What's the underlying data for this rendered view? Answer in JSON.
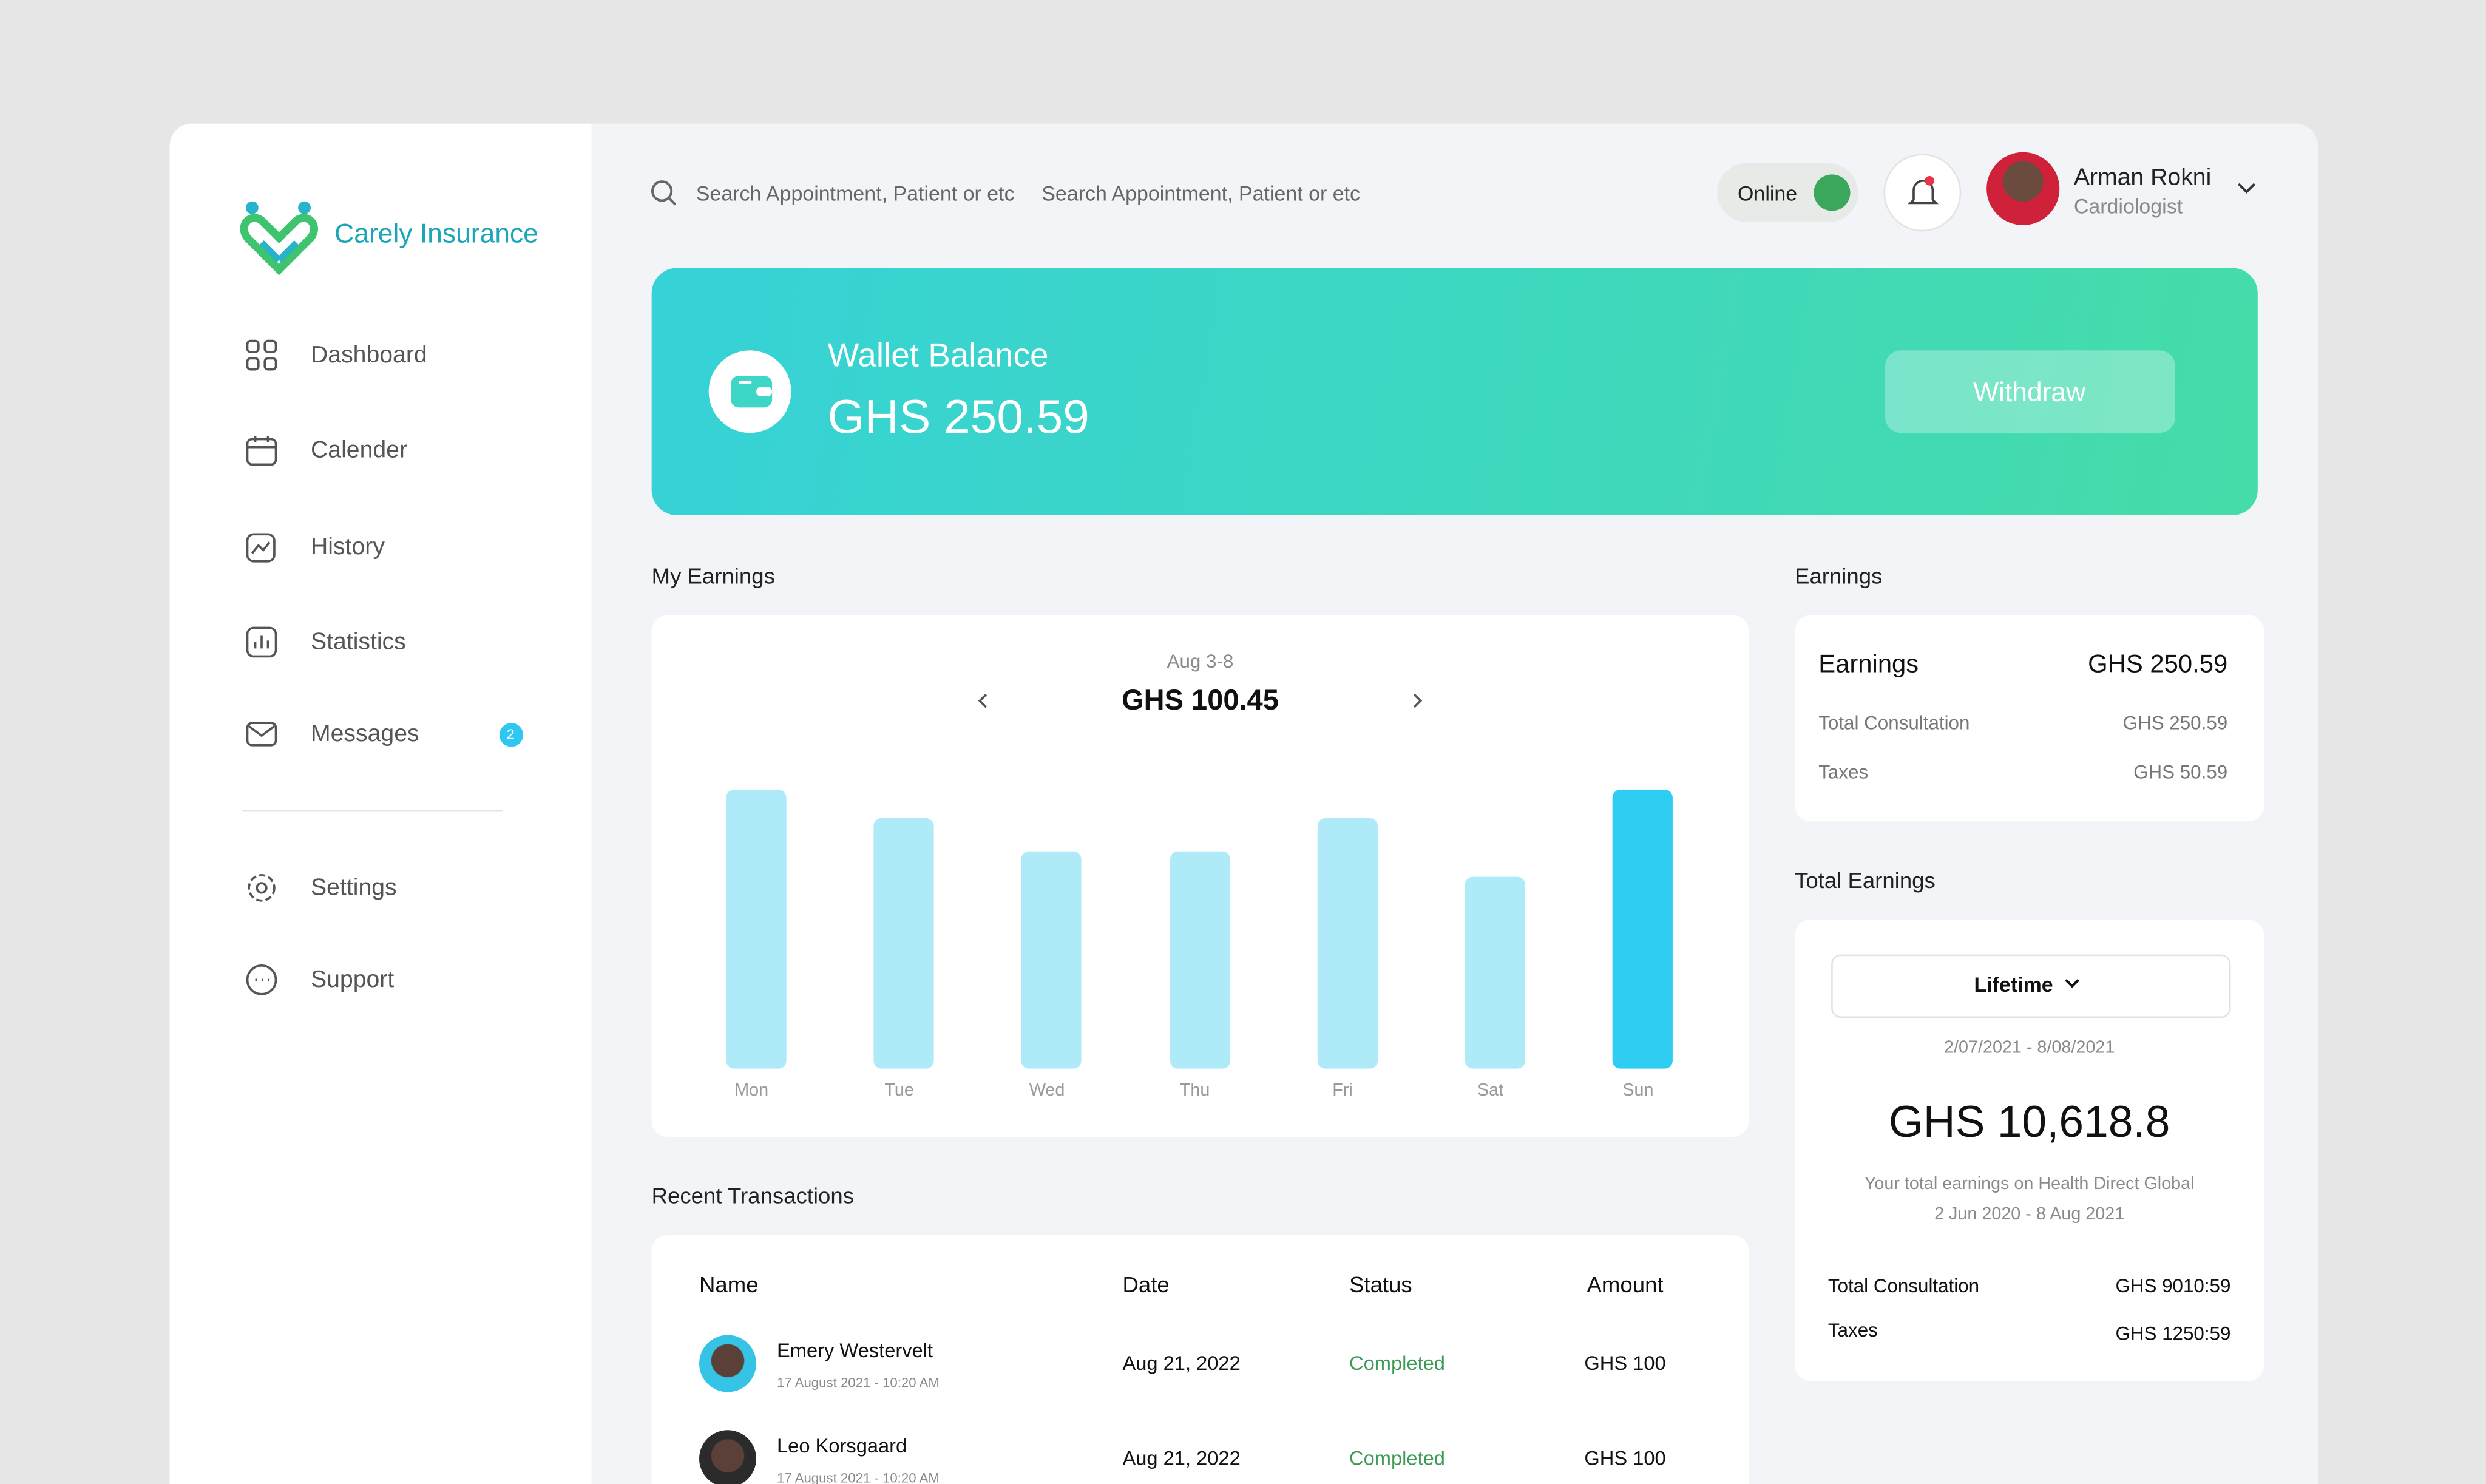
{
  "sidebar": {
    "brand": "Carely Insurance",
    "nav": [
      {
        "label": "Dashboard"
      },
      {
        "label": "Calender"
      },
      {
        "label": "History"
      },
      {
        "label": "Statistics"
      },
      {
        "label": "Messages",
        "badge": "2"
      }
    ],
    "nav_bottom": [
      {
        "label": "Settings"
      },
      {
        "label": "Support"
      }
    ]
  },
  "header": {
    "search": {
      "placeholder": "Search Appointment, Patient or etc",
      "value": "Search Appointment, Patient or etc"
    },
    "status": "Online",
    "user": {
      "name": "Arman Rokni",
      "role": "Cardiologist"
    }
  },
  "wallet": {
    "title": "Wallet Balance",
    "amount": "GHS 250.59",
    "button": "Withdraw"
  },
  "chart_data": {
    "type": "bar",
    "title": "My Earnings",
    "subtitle": "Aug 3-8",
    "annotation": "GHS 100.45",
    "categories": [
      "Mon",
      "Tue",
      "Wed",
      "Thu",
      "Fri",
      "Sat",
      "Sun"
    ],
    "values": [
      100,
      90,
      78,
      78,
      90,
      69,
      100
    ],
    "colors": [
      "#aeeaf8",
      "#aeeaf8",
      "#aeeaf8",
      "#aeeaf8",
      "#aeeaf8",
      "#aeeaf8",
      "#30cdf2"
    ],
    "ylim": [
      0,
      100
    ]
  },
  "earnings": {
    "section": "Earnings",
    "title": "Earnings",
    "amount": "GHS 250.59",
    "rows": [
      [
        "Total Consultation",
        "GHS 250.59"
      ],
      [
        "Taxes",
        "GHS 50.59"
      ]
    ]
  },
  "total_earnings": {
    "section": "Total Earnings",
    "period": "Lifetime",
    "range": "2/07/2021 - 8/08/2021",
    "amount": "GHS 10,618.8",
    "note": "Your total earnings on Health Direct Global",
    "note_range": "2 Jun 2020 - 8 Aug 2021",
    "rows": [
      [
        "Total Consultation",
        "GHS 9010:59"
      ],
      [
        "Taxes",
        "GHS 1250:59"
      ]
    ]
  },
  "transactions": {
    "section": "Recent Transactions",
    "columns": [
      "Name",
      "Date",
      "Status",
      "Amount"
    ],
    "rows": [
      {
        "name": "Emery Westervelt",
        "time": "17 August 2021 - 10:20 AM",
        "date": "Aug 21, 2022",
        "status": "Completed",
        "amount": "GHS 100"
      },
      {
        "name": "Leo Korsgaard",
        "time": "17 August 2021 - 10:20 AM",
        "date": "Aug 21, 2022",
        "status": "Completed",
        "amount": "GHS 100"
      }
    ]
  }
}
